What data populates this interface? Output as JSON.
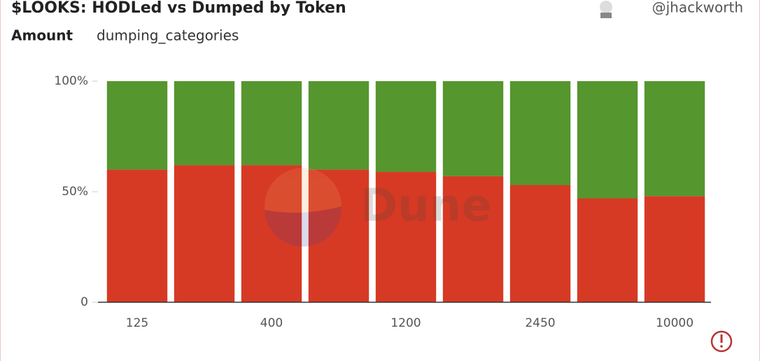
{
  "chart_data": {
    "type": "bar",
    "stacked": true,
    "title": "$LOOKS: HODLed vs Dumped by Token",
    "author": "@jhackworth",
    "subtitle": "Amount",
    "series_field": "dumping_categories",
    "watermark": "Dune",
    "categories": [
      "125",
      null,
      "400",
      null,
      "1200",
      null,
      "2450",
      null,
      "10000"
    ],
    "series": [
      {
        "color": "#d63a24",
        "values": [
          60,
          62,
          62,
          60,
          59,
          57,
          53,
          47,
          48
        ]
      },
      {
        "color": "#55962e",
        "values": [
          40,
          38,
          38,
          40,
          41,
          43,
          47,
          53,
          52
        ]
      }
    ],
    "ylim": [
      0,
      100
    ],
    "yticks": [
      0,
      {
        "value": 50,
        "label": "50%"
      },
      {
        "value": 100,
        "label": "100%"
      }
    ],
    "grid": false
  }
}
